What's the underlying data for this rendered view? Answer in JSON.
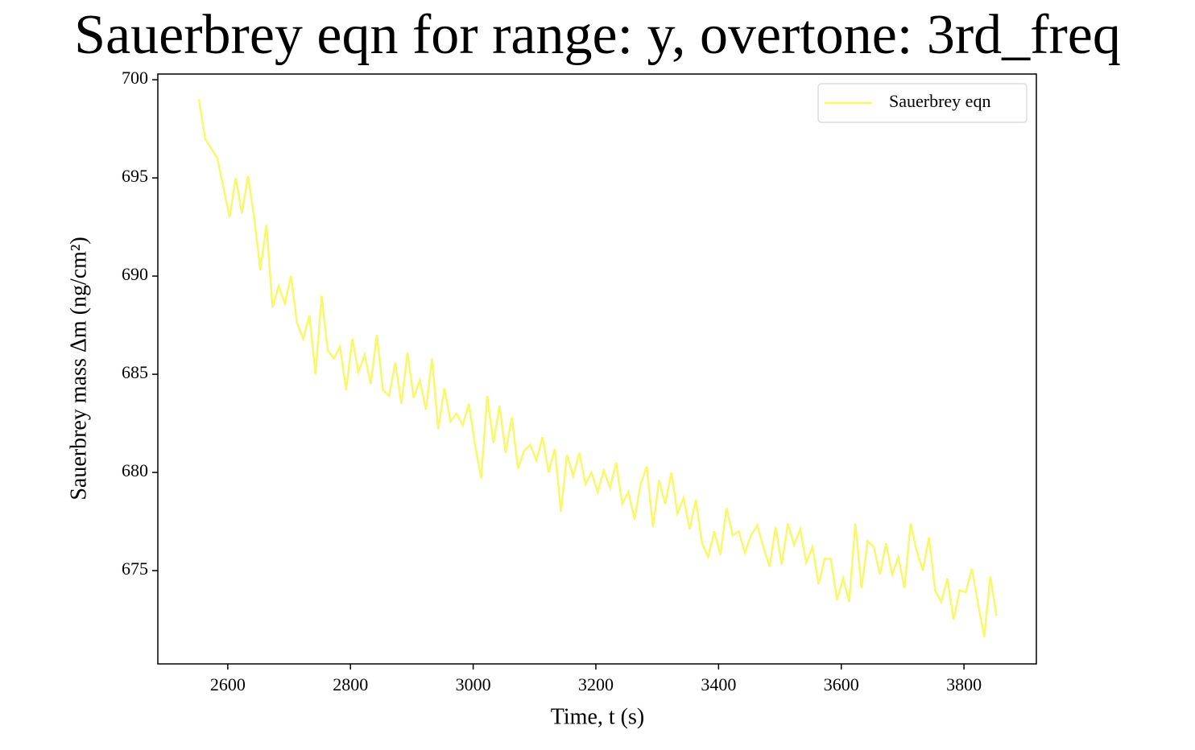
{
  "chart_data": {
    "type": "line",
    "title": "Sauerbrey eqn for range: y, overtone: 3rd_freq",
    "xlabel": "Time, t (s)",
    "ylabel": "Sauerbrey mass Δm (ng/cm²)",
    "x": [
      2553,
      2563,
      2573,
      2583,
      2593,
      2603,
      2613,
      2623,
      2633,
      2643,
      2653,
      2663,
      2673,
      2683,
      2693,
      2703,
      2713,
      2723,
      2733,
      2743,
      2753,
      2763,
      2773,
      2783,
      2793,
      2803,
      2813,
      2823,
      2833,
      2843,
      2853,
      2863,
      2873,
      2883,
      2893,
      2903,
      2913,
      2923,
      2933,
      2943,
      2953,
      2963,
      2973,
      2983,
      2993,
      3003,
      3013,
      3023,
      3033,
      3043,
      3053,
      3063,
      3073,
      3083,
      3093,
      3103,
      3113,
      3123,
      3133,
      3143,
      3153,
      3163,
      3173,
      3183,
      3193,
      3203,
      3213,
      3223,
      3233,
      3243,
      3253,
      3263,
      3273,
      3283,
      3293,
      3303,
      3313,
      3323,
      3333,
      3343,
      3353,
      3363,
      3373,
      3383,
      3393,
      3403,
      3413,
      3423,
      3433,
      3443,
      3453,
      3463,
      3473,
      3483,
      3493,
      3503,
      3513,
      3523,
      3533,
      3543,
      3553,
      3563,
      3573,
      3583,
      3593,
      3603,
      3613,
      3623,
      3633,
      3643,
      3653,
      3663,
      3673,
      3683,
      3693,
      3703,
      3713,
      3723,
      3733,
      3743,
      3753,
      3763,
      3773,
      3783,
      3793,
      3803,
      3813,
      3823,
      3833,
      3843,
      3853
    ],
    "series": [
      {
        "name": "Sauerbrey eqn",
        "color": "#f8f86a",
        "values": [
          699.0,
          697.0,
          696.5,
          696.0,
          694.5,
          693.0,
          695.0,
          693.2,
          695.1,
          693.0,
          690.3,
          692.6,
          688.4,
          689.5,
          688.6,
          690.0,
          687.6,
          686.8,
          688.0,
          685.0,
          689.0,
          686.2,
          685.8,
          686.4,
          684.2,
          686.8,
          685.1,
          686.0,
          684.5,
          687.0,
          684.2,
          683.9,
          685.6,
          683.5,
          686.1,
          683.8,
          684.7,
          683.2,
          685.8,
          682.2,
          684.3,
          682.6,
          683.0,
          682.4,
          683.5,
          681.4,
          679.7,
          683.9,
          681.5,
          683.4,
          681.0,
          682.8,
          680.2,
          681.1,
          681.4,
          680.6,
          681.8,
          680.0,
          681.2,
          678.0,
          680.9,
          679.8,
          681.0,
          679.4,
          680.0,
          679.0,
          680.1,
          679.2,
          680.5,
          678.4,
          679.0,
          677.6,
          679.4,
          680.3,
          677.2,
          679.6,
          678.4,
          680.0,
          677.9,
          678.7,
          677.1,
          678.6,
          676.4,
          675.7,
          677.0,
          675.8,
          678.2,
          676.8,
          677.0,
          675.9,
          676.8,
          677.3,
          676.2,
          675.2,
          677.2,
          675.3,
          677.4,
          676.3,
          677.1,
          675.4,
          676.2,
          674.3,
          675.6,
          675.6,
          673.5,
          674.6,
          673.4,
          677.4,
          674.1,
          676.5,
          676.2,
          674.8,
          676.4,
          674.8,
          675.7,
          674.1,
          677.4,
          676.0,
          675.0,
          676.7,
          674.0,
          673.4,
          674.6,
          672.5,
          674.0,
          673.9,
          675.1,
          673.3,
          671.6,
          674.7,
          672.7
        ]
      }
    ],
    "xlim": [
      2486,
      3918
    ],
    "ylim": [
      670.25,
      700.29
    ],
    "xticks": [
      2600,
      2800,
      3000,
      3200,
      3400,
      3600,
      3800
    ],
    "yticks": [
      675,
      680,
      685,
      690,
      695,
      700
    ],
    "legend": "upper right"
  }
}
